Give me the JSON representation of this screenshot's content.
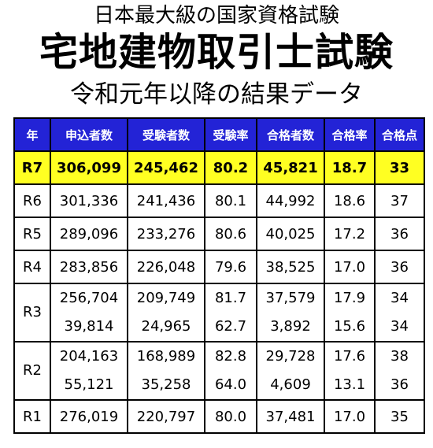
{
  "titles": {
    "line1": "日本最大級の国家資格試験",
    "line2": "宅地建物取引士試験",
    "line3": "令和元年以降の結果データ"
  },
  "table": {
    "headers": [
      "年",
      "申込者数",
      "受験者数",
      "受験率",
      "合格者数",
      "合格率",
      "合格点"
    ],
    "rows": [
      {
        "year": "R7",
        "cells": [
          [
            "306,099"
          ],
          [
            "245,462"
          ],
          [
            "80.2"
          ],
          [
            "45,821"
          ],
          [
            "18.7"
          ],
          [
            "33"
          ]
        ]
      },
      {
        "year": "R6",
        "cells": [
          [
            "301,336"
          ],
          [
            "241,436"
          ],
          [
            "80.1"
          ],
          [
            "44,992"
          ],
          [
            "18.6"
          ],
          [
            "37"
          ]
        ]
      },
      {
        "year": "R5",
        "cells": [
          [
            "289,096"
          ],
          [
            "233,276"
          ],
          [
            "80.6"
          ],
          [
            "40,025"
          ],
          [
            "17.2"
          ],
          [
            "36"
          ]
        ]
      },
      {
        "year": "R4",
        "cells": [
          [
            "283,856"
          ],
          [
            "226,048"
          ],
          [
            "79.6"
          ],
          [
            "38,525"
          ],
          [
            "17.0"
          ],
          [
            "36"
          ]
        ]
      },
      {
        "year": "R3",
        "cells": [
          [
            "256,704",
            "39,814"
          ],
          [
            "209,749",
            "24,965"
          ],
          [
            "81.7",
            "62.7"
          ],
          [
            "37,579",
            "3,892"
          ],
          [
            "17.9",
            "15.6"
          ],
          [
            "34",
            "34"
          ]
        ]
      },
      {
        "year": "R2",
        "cells": [
          [
            "204,163",
            "55,121"
          ],
          [
            "168,989",
            "35,258"
          ],
          [
            "82.8",
            "64.0"
          ],
          [
            "29,728",
            "4,609"
          ],
          [
            "17.6",
            "13.1"
          ],
          [
            "38",
            "36"
          ]
        ]
      },
      {
        "year": "R1",
        "cells": [
          [
            "276,019"
          ],
          [
            "220,797"
          ],
          [
            "80.0"
          ],
          [
            "37,481"
          ],
          [
            "17.0"
          ],
          [
            "35"
          ]
        ]
      }
    ]
  },
  "colors": {
    "header_bg": "#2323d6",
    "header_text": "#ffffff",
    "highlight_row_bg": "#ffff22",
    "border": "#000000"
  }
}
